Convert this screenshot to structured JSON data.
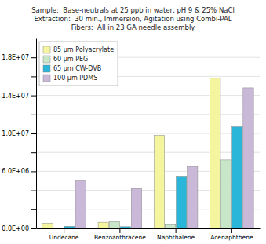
{
  "chart_data": {
    "type": "bar",
    "title": "Sample:  Base-neutrals at 25 ppb in water, pH 9 & 25% NaCl\nExtraction:  30 min., Immersion, Agitation using Combi-PAL\nFibers:  All in 23 GA needle assembly",
    "categories": [
      "Undecane",
      "Benzoanthracene",
      "Naphthalene",
      "Acenaphthene"
    ],
    "series": [
      {
        "name": "85 μm Polyacrylate",
        "color": "#f5f5a0",
        "values": [
          550000,
          650000,
          9800000,
          15800000
        ]
      },
      {
        "name": "60 μm PEG",
        "color": "#c8e6c8",
        "values": [
          0,
          700000,
          380000,
          7200000
        ]
      },
      {
        "name": "65 μm CW-DVB",
        "color": "#29b6d8",
        "values": [
          220000,
          180000,
          5500000,
          10700000
        ]
      },
      {
        "name": "100 μm PDMS",
        "color": "#c9b8d8",
        "values": [
          5000000,
          4200000,
          6500000,
          14800000
        ]
      }
    ],
    "ylim": [
      0,
      20000000
    ],
    "yticks": [
      {
        "value": 0,
        "label": "0.0E+00"
      },
      {
        "value": 2000000,
        "label": null
      },
      {
        "value": 4000000,
        "label": null
      },
      {
        "value": 6000000,
        "label": "6.0E+06"
      },
      {
        "value": 8000000,
        "label": null
      },
      {
        "value": 10000000,
        "label": "1.0E+07"
      },
      {
        "value": 12000000,
        "label": null
      },
      {
        "value": 14000000,
        "label": "1.4E+07"
      },
      {
        "value": 16000000,
        "label": null
      },
      {
        "value": 18000000,
        "label": "1.8E+07"
      }
    ],
    "grid": true,
    "legend": "upper left"
  }
}
